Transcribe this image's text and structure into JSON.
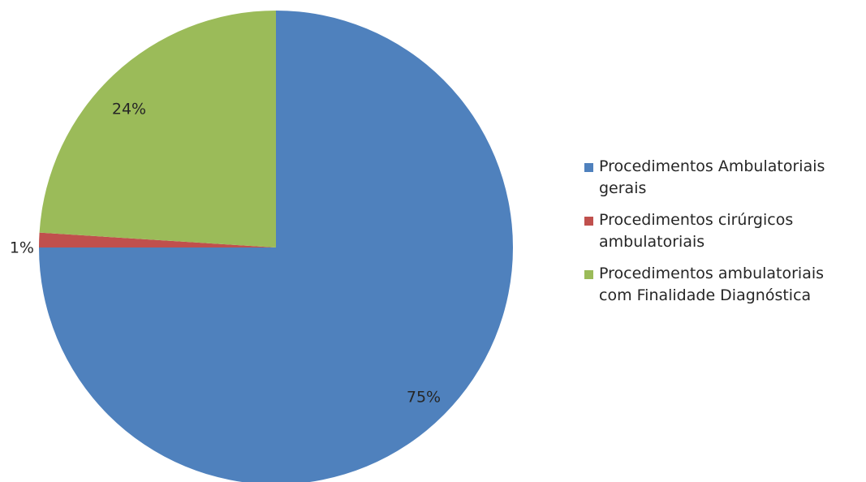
{
  "chart_data": {
    "type": "pie",
    "categories": [
      "Procedimentos Ambulatoriais gerais",
      "Procedimentos cirúrgicos ambulatoriais",
      " Procedimentos ambulatoriais com Finalidade Diagnóstica"
    ],
    "values": [
      75,
      1,
      24
    ],
    "data_labels": [
      "75%",
      "1%",
      "24%"
    ],
    "colors": [
      "#4F81BD",
      "#C0504D",
      "#9BBB59"
    ],
    "legend_position": "right",
    "start_angle": "12 o'clock",
    "direction": "clockwise"
  }
}
